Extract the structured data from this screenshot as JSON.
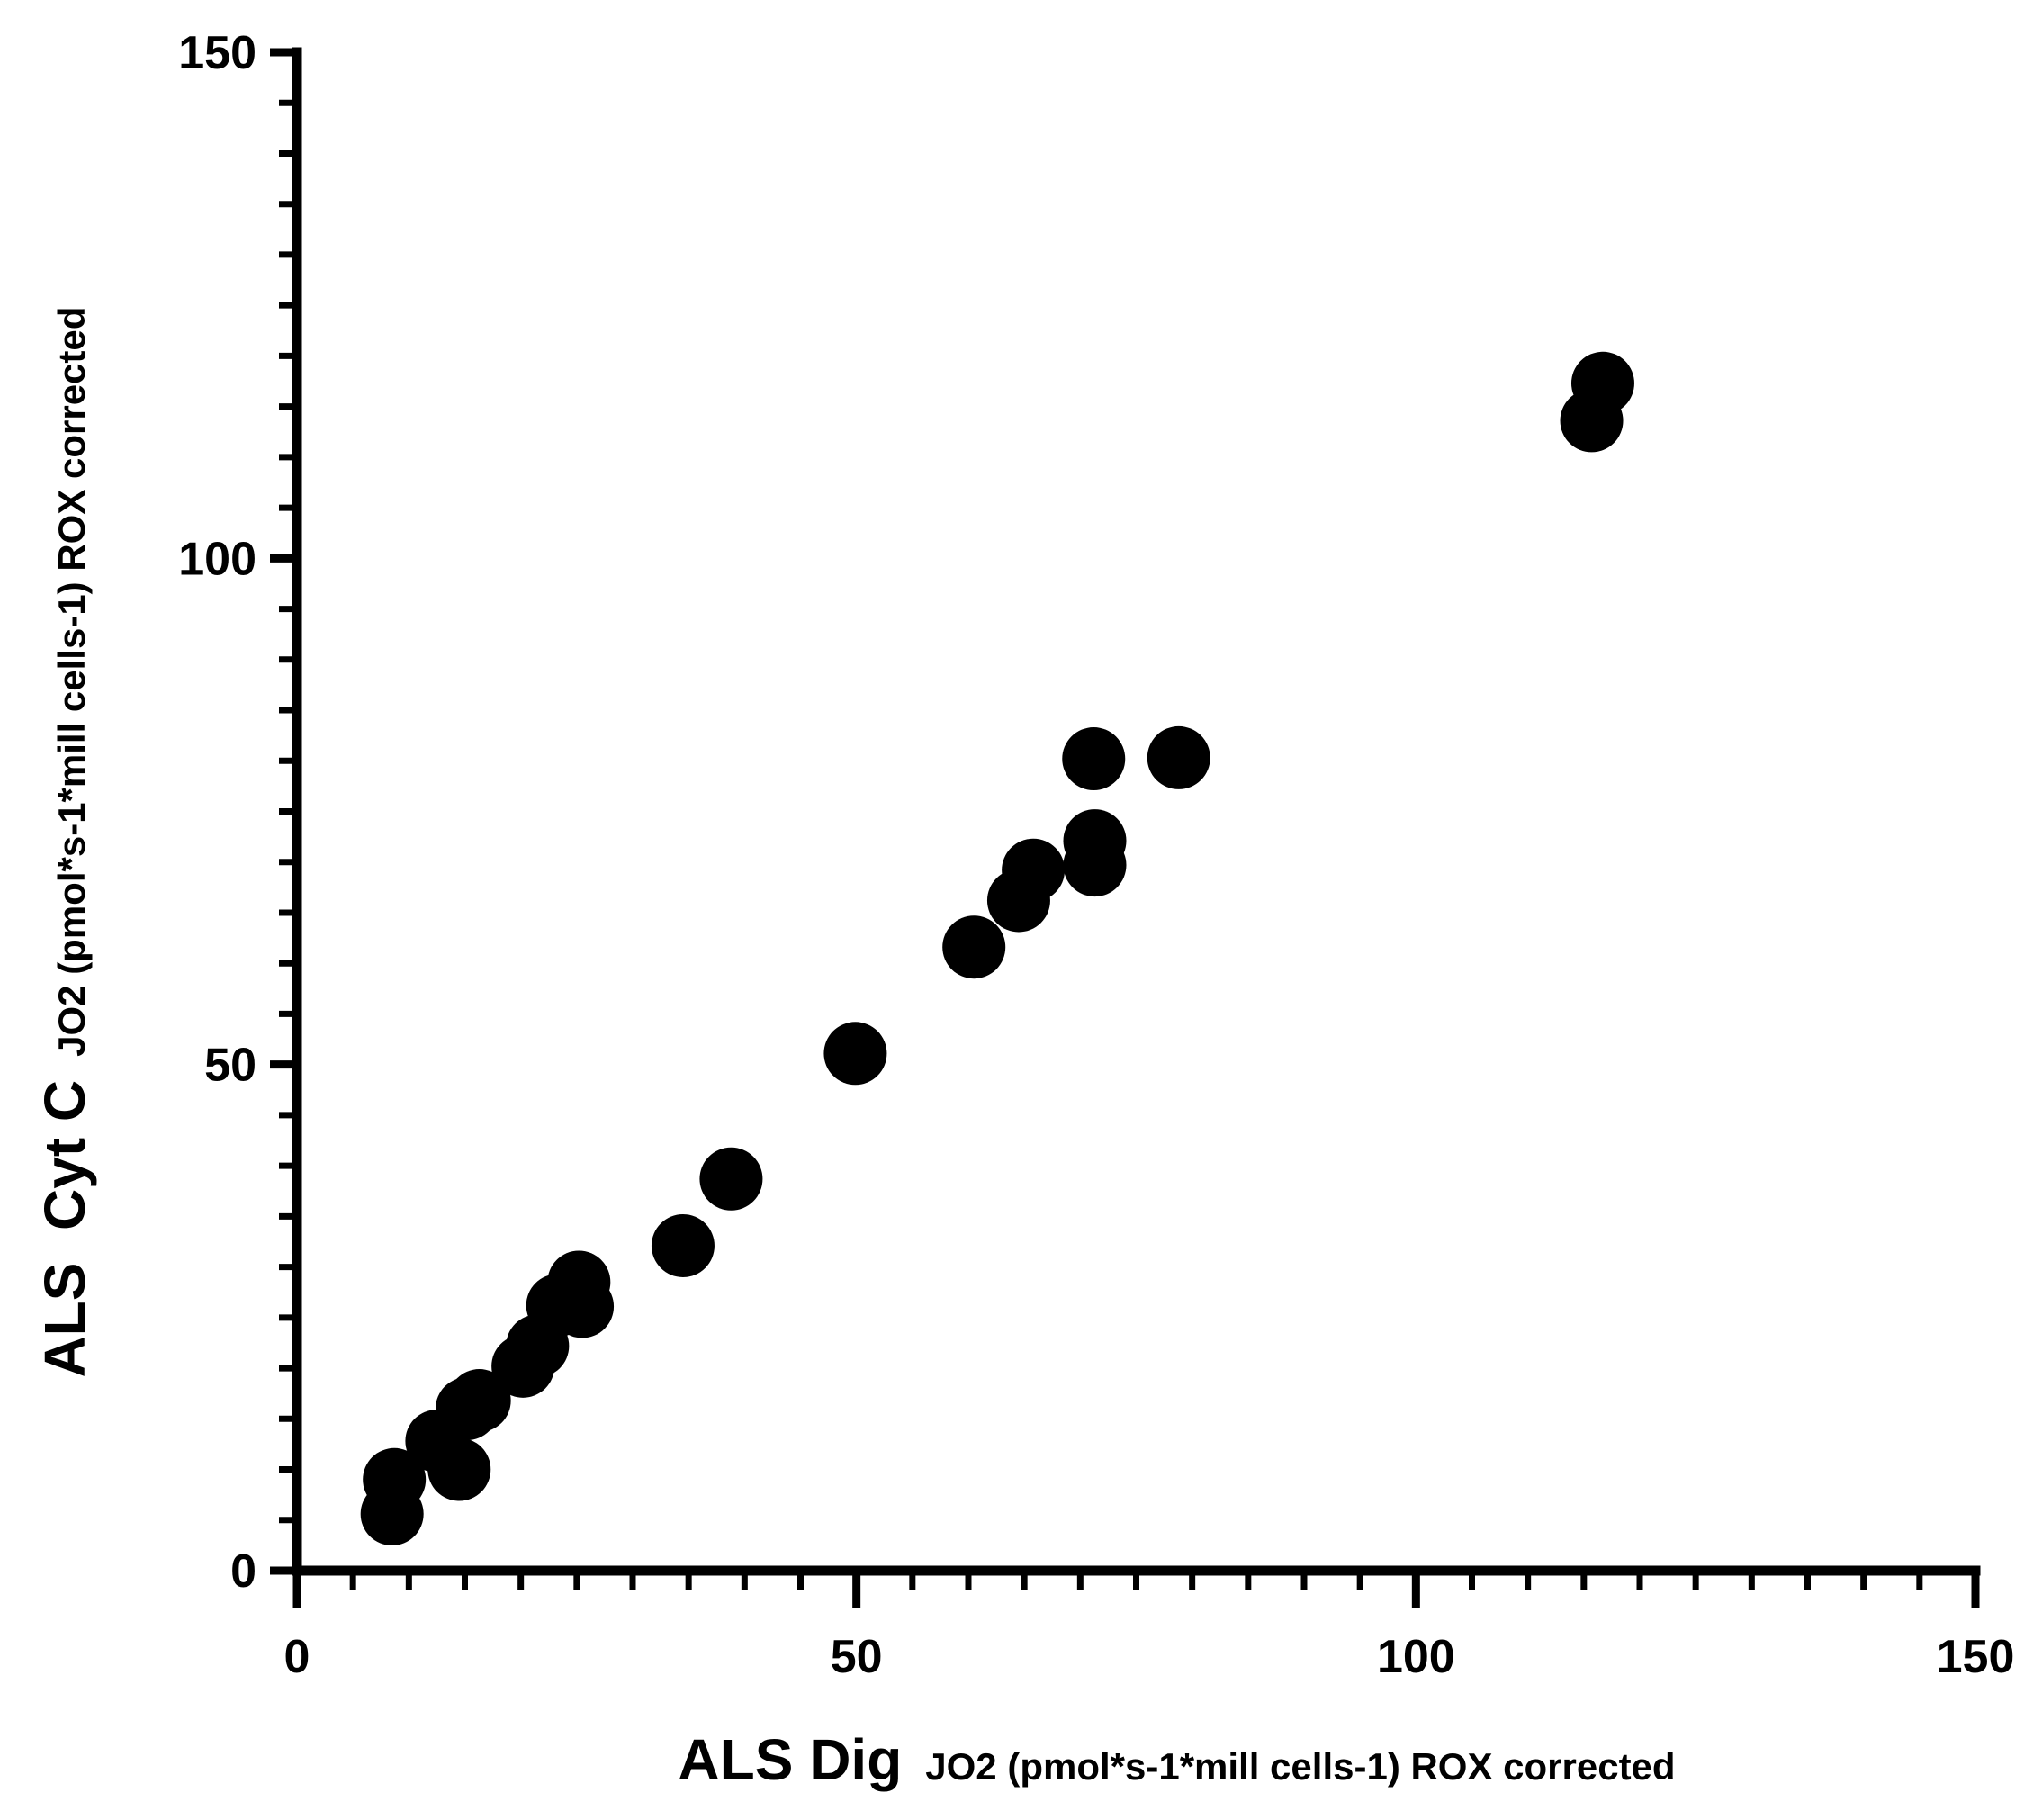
{
  "chart_data": {
    "type": "scatter",
    "title": "",
    "xlabel": {
      "main": "ALS Dig",
      "sub": "JO2 (pmol*s-1*mill cells-1) ROX corrected"
    },
    "ylabel": {
      "main": "ALS  Cyt C",
      "sub": "JO2 (pmol*s-1*mill cells-1) ROX corrected"
    },
    "xlim": [
      0,
      150
    ],
    "ylim": [
      0,
      150
    ],
    "x_ticks": [
      0,
      50,
      100,
      150
    ],
    "y_ticks": [
      0,
      50,
      100,
      150
    ],
    "x_tick_labels": [
      "0",
      "50",
      "100",
      "150"
    ],
    "y_tick_labels": [
      "0",
      "50",
      "100",
      "150"
    ],
    "x_minor_step": 5,
    "y_minor_step": 5,
    "grid": false,
    "legend": "none",
    "marker_color": "#000000",
    "points": [
      {
        "x": 8.5,
        "y": 5.6
      },
      {
        "x": 8.7,
        "y": 9.0
      },
      {
        "x": 12.5,
        "y": 12.8
      },
      {
        "x": 14.5,
        "y": 10.0
      },
      {
        "x": 15.2,
        "y": 16.0
      },
      {
        "x": 16.3,
        "y": 16.8
      },
      {
        "x": 20.2,
        "y": 20.2
      },
      {
        "x": 21.5,
        "y": 22.2
      },
      {
        "x": 23.3,
        "y": 26.2
      },
      {
        "x": 25.5,
        "y": 26.1
      },
      {
        "x": 25.2,
        "y": 28.5
      },
      {
        "x": 34.5,
        "y": 32.1
      },
      {
        "x": 38.8,
        "y": 38.7
      },
      {
        "x": 49.9,
        "y": 51.1
      },
      {
        "x": 60.5,
        "y": 61.6
      },
      {
        "x": 64.5,
        "y": 66.2
      },
      {
        "x": 65.8,
        "y": 69.2
      },
      {
        "x": 71.3,
        "y": 69.7
      },
      {
        "x": 71.3,
        "y": 72.1
      },
      {
        "x": 71.2,
        "y": 80.2
      },
      {
        "x": 78.8,
        "y": 80.3
      },
      {
        "x": 115.7,
        "y": 113.6
      },
      {
        "x": 116.7,
        "y": 117.3
      }
    ]
  }
}
